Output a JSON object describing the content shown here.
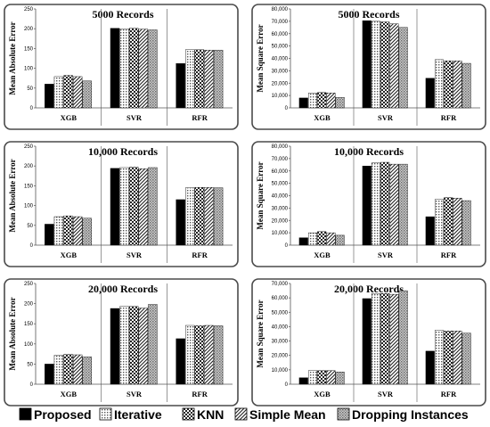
{
  "colors": {
    "frame": "#4a4a4a",
    "axis": "#555555",
    "bar_stroke": "#000000"
  },
  "legend": [
    {
      "name": "Proposed",
      "pattern": "solid"
    },
    {
      "name": "Iterative",
      "pattern": "dots"
    },
    {
      "name": "KNN",
      "pattern": "checker"
    },
    {
      "name": "Simple Mean",
      "pattern": "diag"
    },
    {
      "name": "Dropping Instances",
      "pattern": "grid"
    }
  ],
  "chart_data": [
    {
      "type": "bar",
      "title": "5000 Records",
      "ylabel": "Mean Absolute Error",
      "ylim": [
        0,
        250
      ],
      "yticks": [
        "0",
        "50",
        "100",
        "150",
        "200",
        "250"
      ],
      "categories": [
        "XGB",
        "SVR",
        "RFR"
      ],
      "series": [
        {
          "name": "Proposed",
          "values": [
            60,
            201,
            112
          ]
        },
        {
          "name": "Iterative",
          "values": [
            79,
            200,
            147
          ]
        },
        {
          "name": "KNN",
          "values": [
            82,
            201,
            147
          ]
        },
        {
          "name": "Simple Mean",
          "values": [
            79,
            199,
            146
          ]
        },
        {
          "name": "Dropping Instances",
          "values": [
            68,
            197,
            146
          ]
        }
      ]
    },
    {
      "type": "bar",
      "title": "5000 Records",
      "ylabel": "Mean Square Error",
      "ylim": [
        0,
        80000
      ],
      "yticks": [
        "0",
        "10,000",
        "20,000",
        "30,000",
        "40,000",
        "50,000",
        "60,000",
        "70,000",
        "80,000"
      ],
      "categories": [
        "XGB",
        "SVR",
        "RFR"
      ],
      "series": [
        {
          "name": "Proposed",
          "values": [
            8000,
            70500,
            24000
          ]
        },
        {
          "name": "Iterative",
          "values": [
            12000,
            70000,
            39000
          ]
        },
        {
          "name": "KNN",
          "values": [
            12500,
            69500,
            38000
          ]
        },
        {
          "name": "Simple Mean",
          "values": [
            12000,
            68000,
            38000
          ]
        },
        {
          "name": "Dropping Instances",
          "values": [
            8500,
            65000,
            36000
          ]
        }
      ]
    },
    {
      "type": "bar",
      "title": "10,000 Records",
      "ylabel": "Mean Absolute Error",
      "ylim": [
        0,
        250
      ],
      "yticks": [
        "0",
        "50",
        "100",
        "150",
        "200",
        "250"
      ],
      "categories": [
        "XGB",
        "SVR",
        "RFR"
      ],
      "series": [
        {
          "name": "Proposed",
          "values": [
            53,
            194,
            115
          ]
        },
        {
          "name": "Iterative",
          "values": [
            72,
            196,
            145
          ]
        },
        {
          "name": "KNN",
          "values": [
            74,
            197,
            146
          ]
        },
        {
          "name": "Simple Mean",
          "values": [
            72,
            193,
            146
          ]
        },
        {
          "name": "Dropping Instances",
          "values": [
            68,
            196,
            145
          ]
        }
      ]
    },
    {
      "type": "bar",
      "title": "10,000 Records",
      "ylabel": "Mean Square Error",
      "ylim": [
        0,
        80000
      ],
      "yticks": [
        "0",
        "10,000",
        "20,000",
        "30,000",
        "40,000",
        "50,000",
        "60,000",
        "70,000",
        "80,000"
      ],
      "categories": [
        "XGB",
        "SVR",
        "RFR"
      ],
      "series": [
        {
          "name": "Proposed",
          "values": [
            6000,
            64000,
            23000
          ]
        },
        {
          "name": "Iterative",
          "values": [
            10000,
            66500,
            37000
          ]
        },
        {
          "name": "KNN",
          "values": [
            11000,
            67000,
            38500
          ]
        },
        {
          "name": "Simple Mean",
          "values": [
            10000,
            65500,
            38000
          ]
        },
        {
          "name": "Dropping Instances",
          "values": [
            8000,
            65500,
            36000
          ]
        }
      ]
    },
    {
      "type": "bar",
      "title": "20,000 Records",
      "ylabel": "Mean Absolute Error",
      "ylim": [
        0,
        250
      ],
      "yticks": [
        "0",
        "50",
        "100",
        "150",
        "200",
        "250"
      ],
      "categories": [
        "XGB",
        "SVR",
        "RFR"
      ],
      "series": [
        {
          "name": "Proposed",
          "values": [
            50,
            188,
            113
          ]
        },
        {
          "name": "Iterative",
          "values": [
            72,
            193,
            146
          ]
        },
        {
          "name": "KNN",
          "values": [
            74,
            193,
            145
          ]
        },
        {
          "name": "Simple Mean",
          "values": [
            73,
            189,
            146
          ]
        },
        {
          "name": "Dropping Instances",
          "values": [
            68,
            198,
            145
          ]
        }
      ]
    },
    {
      "type": "bar",
      "title": "20,000 Records",
      "ylabel": "Mean Square Error",
      "ylim": [
        0,
        70000
      ],
      "yticks": [
        "0",
        "10,000",
        "20,000",
        "30,000",
        "40,000",
        "50,000",
        "60,000",
        "70,000"
      ],
      "categories": [
        "XGB",
        "SVR",
        "RFR"
      ],
      "series": [
        {
          "name": "Proposed",
          "values": [
            4500,
            59500,
            23000
          ]
        },
        {
          "name": "Iterative",
          "values": [
            9500,
            63000,
            37500
          ]
        },
        {
          "name": "KNN",
          "values": [
            9500,
            63000,
            37000
          ]
        },
        {
          "name": "Simple Mean",
          "values": [
            9500,
            62500,
            37000
          ]
        },
        {
          "name": "Dropping Instances",
          "values": [
            8500,
            65000,
            35500
          ]
        }
      ]
    }
  ]
}
